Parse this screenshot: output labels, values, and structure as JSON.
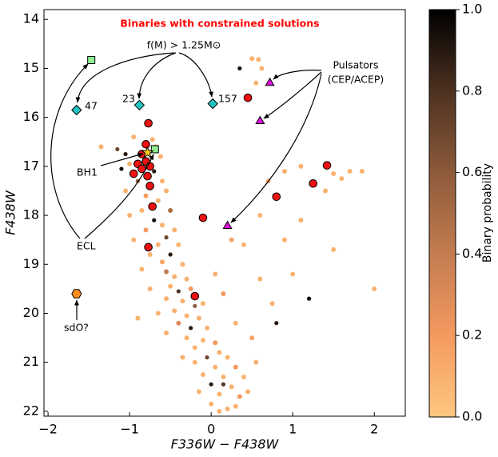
{
  "chart_data": {
    "type": "scatter",
    "title": "Binaries with constrained solutions",
    "title_color": "#ff0000",
    "x_label": "F336W − F438W",
    "y_label": "F438W",
    "xlim": [
      -2.05,
      2.38
    ],
    "ylim": [
      13.8,
      22.1
    ],
    "y_inverted": true,
    "xticks": [
      {
        "value": -2,
        "label": "−2"
      },
      {
        "value": -1,
        "label": "−1"
      },
      0,
      1,
      2
    ],
    "yticks": [
      14,
      15,
      16,
      17,
      18,
      19,
      20,
      21,
      22
    ],
    "colorbar": {
      "label": "Binary probability",
      "lim": [
        0,
        1
      ],
      "ticks": [
        {
          "value": 0,
          "label": "0.0"
        },
        {
          "value": 0.2,
          "label": "0.2"
        },
        {
          "value": 0.4,
          "label": "0.4"
        },
        {
          "value": 0.6,
          "label": "0.6"
        },
        {
          "value": 0.8,
          "label": "0.8"
        },
        {
          "value": 1,
          "label": "1.0"
        }
      ],
      "colormap": [
        "#ffc77f",
        "#f39a5f",
        "#c47c50",
        "#8d5a3a",
        "#4d3120",
        "#000000"
      ]
    },
    "x": [
      -0.72,
      -0.68,
      -0.62,
      -0.7,
      -0.6,
      -0.9,
      -0.55,
      -0.8,
      -0.65,
      -0.5,
      -0.85,
      -0.7,
      -0.6,
      -0.45,
      -0.8,
      -0.55,
      -0.65,
      -0.4,
      -0.75,
      -0.5,
      -0.6,
      -0.35,
      -0.55,
      -0.45,
      -0.3,
      -0.5,
      -0.4,
      -0.25,
      -0.55,
      -0.35,
      -0.2,
      -0.45,
      -0.3,
      -0.15,
      -0.4,
      -0.25,
      -0.05,
      -0.3,
      -0.1,
      0.05,
      -0.2,
      0.1,
      -0.05,
      0.2,
      -0.2,
      0.05,
      0.3,
      -0.1,
      0.15,
      0.4,
      0.0,
      0.25,
      -0.15,
      0.1,
      0.35,
      0.0,
      0.2,
      0.45,
      0.55,
      0.5,
      0.3,
      0.8,
      0.75,
      0.6,
      1.0,
      1.2,
      2.0,
      1.5,
      0.9,
      0.4,
      1.1,
      0.6,
      1.4,
      1.7,
      1.85,
      0.9,
      1.1,
      1.5,
      0.7,
      1.6,
      0.35,
      0.5,
      0.58,
      0.62,
      0.55,
      -1.05,
      -1.0,
      -1.1,
      -1.15,
      -0.95,
      -1.35,
      -1.05,
      -1.0,
      -0.95,
      -0.85,
      -0.75,
      -0.65,
      -0.55,
      -0.35,
      0.15,
      0.1,
      0.3,
      -0.9,
      0.25,
      0.05,
      -0.1,
      0.15
    ],
    "values": [
      16.45,
      16.6,
      16.8,
      17.1,
      17.3,
      17.3,
      17.5,
      17.6,
      17.7,
      17.9,
      17.9,
      18.1,
      18.2,
      18.3,
      18.3,
      18.45,
      18.6,
      18.6,
      18.8,
      18.8,
      18.95,
      19.0,
      19.15,
      19.25,
      19.3,
      19.45,
      19.55,
      19.5,
      19.7,
      19.75,
      19.85,
      19.95,
      20.05,
      20.1,
      20.2,
      20.3,
      20.3,
      20.5,
      20.55,
      20.6,
      20.7,
      20.8,
      20.9,
      20.9,
      21.0,
      21.1,
      21.1,
      21.25,
      21.3,
      21.3,
      21.45,
      21.5,
      21.6,
      21.65,
      21.7,
      21.85,
      21.95,
      21.6,
      21.0,
      20.5,
      20.2,
      20.2,
      19.8,
      19.3,
      19.2,
      19.7,
      19.5,
      18.7,
      18.5,
      18.6,
      18.1,
      18.0,
      17.5,
      17.1,
      17.1,
      17.1,
      17.0,
      17.15,
      17.3,
      17.25,
      15.0,
      14.8,
      14.82,
      15.0,
      15.3,
      16.75,
      16.95,
      17.05,
      16.65,
      16.4,
      16.6,
      17.5,
      18.0,
      18.5,
      19.1,
      19.5,
      20.0,
      20.4,
      20.9,
      21.45,
      22.0,
      21.9,
      20.1,
      18.5,
      19.2,
      19.8,
      19.6
    ],
    "probability": [
      0.1,
      0.2,
      0.1,
      0.9,
      0.1,
      0.6,
      0.1,
      0.2,
      0.1,
      0.5,
      0.1,
      0.95,
      0.1,
      0.1,
      0.2,
      0.7,
      0.1,
      0.1,
      0.1,
      0.9,
      0.15,
      0.1,
      0.4,
      0.1,
      0.1,
      0.1,
      0.8,
      0.2,
      0.1,
      0.1,
      0.6,
      0.1,
      0.1,
      0.1,
      0.3,
      0.9,
      0.1,
      0.1,
      0.1,
      0.2,
      0.1,
      0.1,
      0.7,
      0.1,
      0.1,
      0.1,
      0.2,
      0.1,
      0.1,
      0.1,
      0.9,
      0.1,
      0.1,
      0.1,
      0.2,
      0.1,
      0.1,
      0.1,
      0.1,
      0.15,
      0.1,
      0.9,
      0.1,
      0.1,
      0.1,
      0.95,
      0.1,
      0.1,
      0.1,
      0.1,
      0.1,
      0.1,
      0.1,
      0.1,
      0.1,
      0.1,
      0.1,
      0.1,
      0.1,
      0.1,
      0.95,
      0.1,
      0.1,
      0.1,
      0.1,
      0.9,
      0.1,
      0.95,
      0.7,
      0.1,
      0.1,
      0.1,
      0.1,
      0.1,
      0.1,
      0.1,
      0.1,
      0.1,
      0.1,
      0.8,
      0.1,
      0.1,
      0.1,
      0.15,
      0.1,
      0.1,
      0.2
    ],
    "groups": [
      {
        "marker": "circle",
        "color": "#ee1111",
        "x": [
          -0.77,
          -0.8,
          -0.85,
          -0.8,
          -0.9,
          -0.85,
          -0.75,
          -0.95,
          -0.78,
          -0.75,
          -0.72,
          -0.77,
          -0.1,
          -0.2,
          0.45,
          0.8,
          1.25,
          1.42
        ],
        "values": [
          16.12,
          16.55,
          16.75,
          16.9,
          16.95,
          17.05,
          17.0,
          17.15,
          17.2,
          17.4,
          17.82,
          18.65,
          18.05,
          19.65,
          15.6,
          17.62,
          17.35,
          16.98
        ]
      },
      {
        "marker": "triangle",
        "color": "#dd11dd",
        "x": [
          0.72,
          0.6,
          0.2
        ],
        "values": [
          15.3,
          16.08,
          18.22
        ]
      },
      {
        "marker": "diamond",
        "color": "#22c4c4",
        "x": [
          -1.65,
          -0.88,
          0.02
        ],
        "values": [
          15.85,
          15.75,
          15.72
        ]
      },
      {
        "marker": "square",
        "color": "#90ee90",
        "x": [
          -1.47,
          -0.69
        ],
        "values": [
          14.83,
          16.65
        ]
      },
      {
        "marker": "star",
        "color": "#ffcc22",
        "x": [
          -0.78
        ],
        "values": [
          16.72
        ]
      },
      {
        "marker": "hexagon",
        "color": "#ff8c1a",
        "x": [
          -1.65
        ],
        "values": [
          19.6
        ]
      }
    ],
    "annotations": [
      "f(M) > 1.25M⊙",
      "Pulsators",
      "(CEP/ACEP)",
      "47",
      "23",
      "157",
      "BH1",
      "ECL",
      "sdO?"
    ]
  }
}
